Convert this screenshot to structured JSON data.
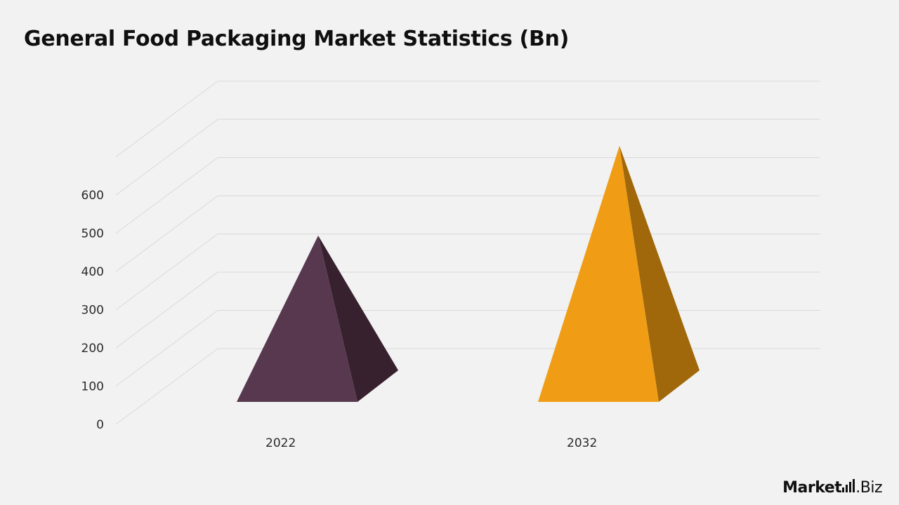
{
  "title": "General Food Packaging Market Statistics (Bn)",
  "chart_data": {
    "type": "bar",
    "shape": "pyramid-3d",
    "title": "General Food Packaging Market Statistics (Bn)",
    "categories": [
      "2022",
      "2032"
    ],
    "values": [
      395,
      630
    ],
    "yticks": [
      "0",
      "100",
      "200",
      "300",
      "400",
      "500",
      "600"
    ],
    "ylim": [
      0,
      700
    ],
    "xlabel": "",
    "ylabel": "",
    "grid": true,
    "legend": "none",
    "colors": {
      "2022": {
        "front": "#57384e",
        "side": "#38212f"
      },
      "2032": {
        "front": "#f09d15",
        "side": "#a0680b"
      }
    },
    "gridline_color": "#d9d9d9"
  },
  "logo": {
    "part1": "Market",
    "dot": ".",
    "part2": "Biz"
  }
}
